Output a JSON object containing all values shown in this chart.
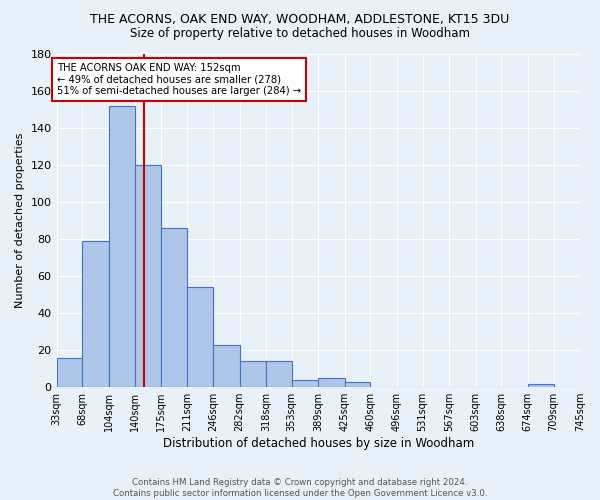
{
  "title": "THE ACORNS, OAK END WAY, WOODHAM, ADDLESTONE, KT15 3DU",
  "subtitle": "Size of property relative to detached houses in Woodham",
  "xlabel": "Distribution of detached houses by size in Woodham",
  "ylabel": "Number of detached properties",
  "footnote1": "Contains HM Land Registry data © Crown copyright and database right 2024.",
  "footnote2": "Contains public sector information licensed under the Open Government Licence v3.0.",
  "bins": [
    33,
    68,
    104,
    140,
    175,
    211,
    246,
    282,
    318,
    353,
    389,
    425,
    460,
    496,
    531,
    567,
    603,
    638,
    674,
    709,
    745
  ],
  "counts": [
    16,
    79,
    152,
    120,
    86,
    54,
    23,
    14,
    14,
    4,
    5,
    3,
    0,
    0,
    0,
    0,
    0,
    0,
    2,
    0
  ],
  "bar_color": "#aec6e8",
  "bar_edge_color": "#4472c4",
  "bg_color": "#e8f0f8",
  "grid_color": "#ffffff",
  "vline_x": 152,
  "vline_color": "#cc0000",
  "annotation_line1": "THE ACORNS OAK END WAY: 152sqm",
  "annotation_line2": "← 49% of detached houses are smaller (278)",
  "annotation_line3": "51% of semi-detached houses are larger (284) →",
  "annotation_box_color": "#ffffff",
  "annotation_box_edge": "#cc0000",
  "ylim": [
    0,
    180
  ],
  "yticks": [
    0,
    20,
    40,
    60,
    80,
    100,
    120,
    140,
    160,
    180
  ]
}
